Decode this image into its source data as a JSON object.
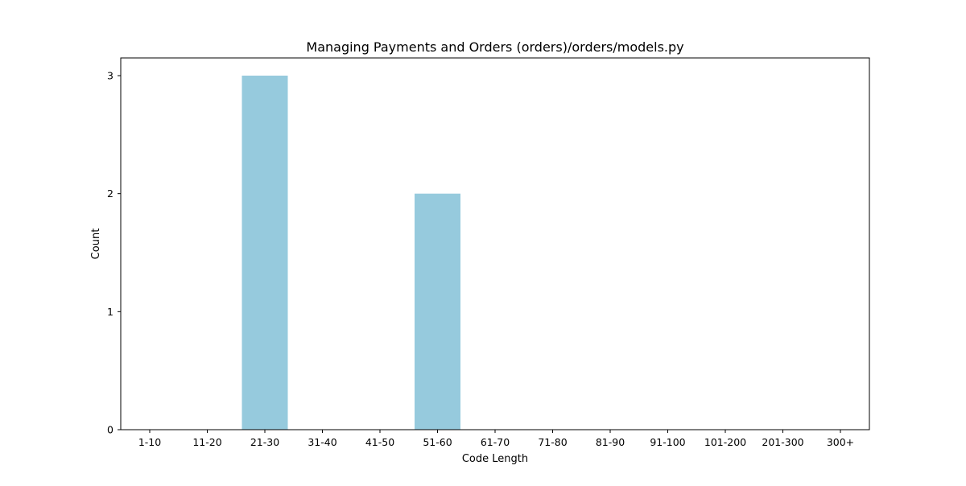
{
  "chart_data": {
    "type": "bar",
    "title": "Managing Payments and Orders (orders)/orders/models.py",
    "xlabel": "Code Length",
    "ylabel": "Count",
    "categories": [
      "1-10",
      "11-20",
      "21-30",
      "31-40",
      "41-50",
      "51-60",
      "61-70",
      "71-80",
      "81-90",
      "91-100",
      "101-200",
      "201-300",
      "300+"
    ],
    "values": [
      0,
      0,
      3,
      0,
      0,
      2,
      0,
      0,
      0,
      0,
      0,
      0,
      0
    ],
    "ylim": [
      0,
      3.15
    ],
    "yticks": [
      "0",
      "1",
      "2",
      "3"
    ],
    "grid": false,
    "legend": "none",
    "bar_color": "#96cadd"
  }
}
